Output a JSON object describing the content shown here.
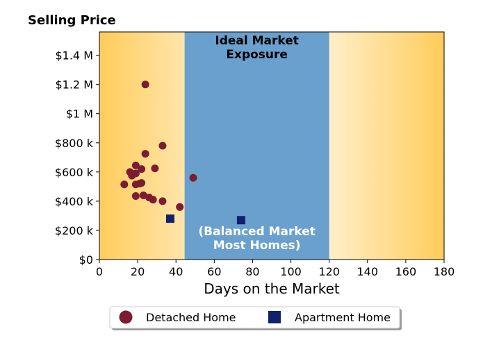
{
  "chart_data": {
    "type": "scatter",
    "title": "Selling Price",
    "xlabel": "Days on the Market",
    "ylabel": "",
    "xlim": [
      0,
      180
    ],
    "ylim": [
      0,
      1560000
    ],
    "xticks": [
      0,
      20,
      40,
      60,
      80,
      100,
      120,
      140,
      160,
      180
    ],
    "xtick_labels": [
      "0",
      "20",
      "40",
      "60",
      "80",
      "100",
      "120",
      "140",
      "160",
      "180"
    ],
    "yticks": [
      0,
      200000,
      400000,
      600000,
      800000,
      1000000,
      1200000,
      1400000
    ],
    "ytick_labels": [
      "$0",
      "$200 k",
      "$400 k",
      "$600 k",
      "$800 k",
      "$1 M",
      "$1.2 M",
      "$1.4 M"
    ],
    "grid": false,
    "legend_position": "bottom-center, outside the plot",
    "bands": [
      {
        "x_start": 44.5,
        "x_end": 120,
        "color": "#69a0cd",
        "label_top": "Ideal Market\nExposure",
        "label_bottom": "(Balanced Market\nMost Homes)"
      }
    ],
    "background_gradient": {
      "edge_color": "#ffcc5a",
      "center_color": "#ffffff"
    },
    "series": [
      {
        "name": "Detached Home",
        "marker": "circle",
        "color": "#7b1c33",
        "points": [
          [
            13,
            515000
          ],
          [
            16,
            600000
          ],
          [
            17,
            575000
          ],
          [
            19,
            645000
          ],
          [
            19,
            590000
          ],
          [
            19,
            515000
          ],
          [
            19,
            435000
          ],
          [
            21,
            520000
          ],
          [
            22,
            620000
          ],
          [
            22,
            525000
          ],
          [
            23,
            440000
          ],
          [
            24,
            1200000
          ],
          [
            24,
            725000
          ],
          [
            26,
            425000
          ],
          [
            28,
            410000
          ],
          [
            29,
            625000
          ],
          [
            33,
            780000
          ],
          [
            33,
            400000
          ],
          [
            42,
            360000
          ],
          [
            49,
            560000
          ]
        ]
      },
      {
        "name": "Apartment Home",
        "marker": "square",
        "color": "#13216a",
        "points": [
          [
            37,
            280000
          ],
          [
            74,
            270000
          ]
        ]
      }
    ]
  }
}
